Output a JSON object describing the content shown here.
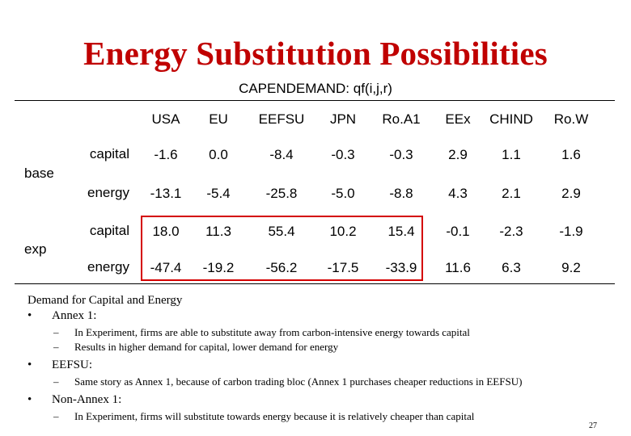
{
  "title": "Energy Substitution Possibilities",
  "subtitle": "CAPENDEMAND: qf(i,j,r)",
  "table": {
    "columns": [
      "USA",
      "EU",
      "EEFSU",
      "JPN",
      "Ro.A1",
      "EEx",
      "CHIND",
      "Ro.W"
    ],
    "groups": [
      {
        "label": "base",
        "rows": [
          {
            "label": "capital",
            "values": [
              "-1.6",
              "0.0",
              "-8.4",
              "-0.3",
              "-0.3",
              "2.9",
              "1.1",
              "1.6"
            ]
          },
          {
            "label": "energy",
            "values": [
              "-13.1",
              "-5.4",
              "-25.8",
              "-5.0",
              "-8.8",
              "4.3",
              "2.1",
              "2.9"
            ]
          }
        ]
      },
      {
        "label": "exp",
        "rows": [
          {
            "label": "capital",
            "values": [
              "18.0",
              "11.3",
              "55.4",
              "10.2",
              "15.4",
              "-0.1",
              "-2.3",
              "-1.9"
            ]
          },
          {
            "label": "energy",
            "values": [
              "-47.4",
              "-19.2",
              "-56.2",
              "-17.5",
              "-33.9",
              "11.6",
              "6.3",
              "9.2"
            ]
          }
        ]
      }
    ]
  },
  "notes": {
    "heading": "Demand for Capital and Energy",
    "bullets": [
      {
        "label": "Annex 1:",
        "sub": [
          "In Experiment, firms are able to substitute away from carbon-intensive energy towards capital",
          "Results in higher demand for capital, lower demand for energy"
        ]
      },
      {
        "label": "EEFSU:",
        "sub": [
          "Same story as Annex 1, because of carbon trading bloc (Annex 1 purchases cheaper reductions in EEFSU)"
        ]
      },
      {
        "label": "Non-Annex 1:",
        "sub": [
          "In Experiment, firms will substitute towards energy because it is relatively cheaper than capital"
        ]
      }
    ],
    "bullet_symbol": "•",
    "dash_symbol": "–"
  },
  "page_number": "27",
  "colors": {
    "title": "#c00000",
    "highlight_box": "#d40000"
  }
}
